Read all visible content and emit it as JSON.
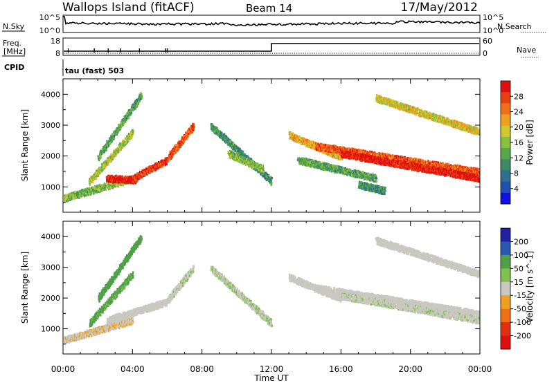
{
  "header": {
    "site": "Wallops Island (fitACF)",
    "beam": "Beam 14",
    "date": "17/May/2012"
  },
  "noise_panel": {
    "left_label": "N.Sky",
    "right_label": "N.Search",
    "y_ticks": [
      "10^5",
      "10^0"
    ]
  },
  "freq_panel": {
    "left_label_line1": "Freq.",
    "left_label_line2": "[MHz]",
    "left_ticks": [
      "18",
      "8"
    ],
    "right_label": "Nave",
    "right_ticks": [
      "60",
      "0"
    ]
  },
  "cpid": {
    "label": "CPID",
    "value": "tau (fast) 503"
  },
  "time_axis": {
    "title": "Time UT",
    "ticks": [
      "00:00",
      "04:00",
      "08:00",
      "12:00",
      "16:00",
      "20:00",
      "00:00"
    ]
  },
  "colors": {
    "power": [
      "#1010e0",
      "#2050b0",
      "#2e6e8e",
      "#3d8a64",
      "#58a84a",
      "#8ac040",
      "#d0c82e",
      "#f0a020",
      "#f07018",
      "#e84010",
      "#e01010"
    ],
    "velocity": [
      "#2020a0",
      "#2a5ab0",
      "#50a04a",
      "#80c050",
      "#c8c8c0",
      "#f0a020",
      "#f07018",
      "#e03010",
      "#e01010"
    ]
  },
  "chart_data": [
    {
      "type": "heatmap",
      "panel": "power",
      "ylabel": "Slant Range [km]",
      "xlabel": "",
      "xlim": [
        0,
        24
      ],
      "ylim": [
        180,
        4500
      ],
      "y_ticks": [
        1000,
        2000,
        3000,
        4000
      ],
      "colorbar": {
        "label": "Power [dB]",
        "ticks": [
          4,
          8,
          12,
          16,
          20,
          24,
          28
        ]
      },
      "echo_bands": [
        {
          "t_start": 0.0,
          "t_end": 4.0,
          "range_start": 650,
          "range_end": 1300,
          "power": 14
        },
        {
          "t_start": 2.5,
          "t_end": 4.2,
          "range_start": 1300,
          "range_end": 1250,
          "power": 28
        },
        {
          "t_start": 4.0,
          "t_end": 6.0,
          "range_start": 1300,
          "range_end": 1900,
          "power": 26
        },
        {
          "t_start": 6.0,
          "t_end": 7.5,
          "range_start": 1950,
          "range_end": 3000,
          "power": 24
        },
        {
          "t_start": 1.5,
          "t_end": 4.0,
          "range_start": 1200,
          "range_end": 2800,
          "power": 16
        },
        {
          "t_start": 2.0,
          "t_end": 4.5,
          "range_start": 2000,
          "range_end": 4000,
          "power": 12
        },
        {
          "t_start": 8.5,
          "t_end": 12.0,
          "range_start": 3000,
          "range_end": 1200,
          "power": 10
        },
        {
          "t_start": 9.5,
          "t_end": 11.5,
          "range_start": 2100,
          "range_end": 1600,
          "power": 14
        },
        {
          "t_start": 13.0,
          "t_end": 16.0,
          "range_start": 2700,
          "range_end": 2000,
          "power": 20
        },
        {
          "t_start": 13.5,
          "t_end": 18.0,
          "range_start": 1900,
          "range_end": 1300,
          "power": 12
        },
        {
          "t_start": 14.5,
          "t_end": 24.0,
          "range_start": 2350,
          "range_end": 1500,
          "power": 24
        },
        {
          "t_start": 16.0,
          "t_end": 24.0,
          "range_start": 2100,
          "range_end": 1300,
          "power": 28
        },
        {
          "t_start": 18.0,
          "t_end": 24.0,
          "range_start": 3900,
          "range_end": 2800,
          "power": 18
        },
        {
          "t_start": 17.0,
          "t_end": 18.5,
          "range_start": 1100,
          "range_end": 900,
          "power": 10
        }
      ]
    },
    {
      "type": "heatmap",
      "panel": "velocity",
      "ylabel": "Slant Range [km]",
      "xlabel": "Time UT",
      "xlim": [
        0,
        24
      ],
      "ylim": [
        180,
        4500
      ],
      "y_ticks": [
        1000,
        2000,
        3000,
        4000
      ],
      "colorbar": {
        "label": "Velocity [m s^-1]",
        "ticks": [
          200,
          100,
          50,
          15,
          -15,
          -50,
          -100,
          -200
        ]
      },
      "echo_bands": [
        {
          "t_start": 0.0,
          "t_end": 4.0,
          "range_start": 650,
          "range_end": 1300,
          "velocity": -10
        },
        {
          "t_start": 2.5,
          "t_end": 6.0,
          "range_start": 1300,
          "range_end": 1900,
          "velocity": 0
        },
        {
          "t_start": 6.0,
          "t_end": 7.5,
          "range_start": 1950,
          "range_end": 3000,
          "velocity": 5
        },
        {
          "t_start": 1.5,
          "t_end": 4.0,
          "range_start": 1200,
          "range_end": 2800,
          "velocity": 40
        },
        {
          "t_start": 2.0,
          "t_end": 4.5,
          "range_start": 2000,
          "range_end": 4000,
          "velocity": 60
        },
        {
          "t_start": 8.5,
          "t_end": 12.0,
          "range_start": 3000,
          "range_end": 1200,
          "velocity": 10
        },
        {
          "t_start": 13.0,
          "t_end": 16.0,
          "range_start": 2700,
          "range_end": 2000,
          "velocity": 0
        },
        {
          "t_start": 14.5,
          "t_end": 24.0,
          "range_start": 2350,
          "range_end": 1500,
          "velocity": 0
        },
        {
          "t_start": 16.0,
          "t_end": 24.0,
          "range_start": 2100,
          "range_end": 1300,
          "velocity": 5
        },
        {
          "t_start": 18.0,
          "t_end": 24.0,
          "range_start": 3900,
          "range_end": 2800,
          "velocity": 0
        }
      ]
    }
  ]
}
